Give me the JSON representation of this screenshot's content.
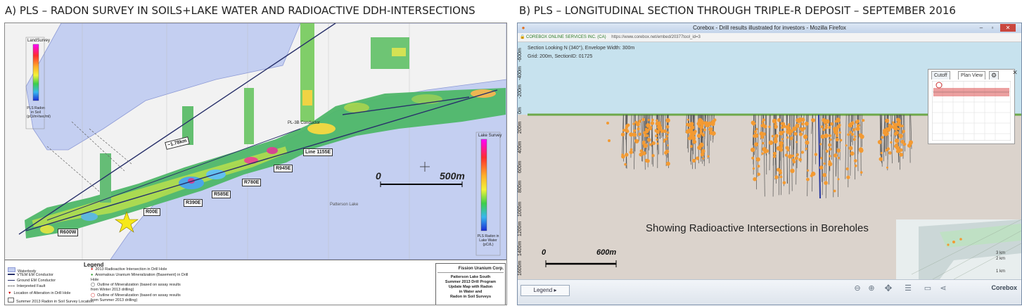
{
  "captions": {
    "left": "A) PLS – RADON SURVEY IN SOILS+LAKE WATER AND  RADIOACTIVE DDH-INTERSECTIONS",
    "right": "B) PLS – LONGITUDINAL SECTION THROUGH TRIPLE-R DEPOSIT – SEPTEMBER 2016"
  },
  "map": {
    "land_legend_title": "LandSurvey",
    "land_legend_caption": "PLS Radon in Soil (pCi/m²/sec/ml)",
    "lake_legend_title": "Lake Survey",
    "lake_legend_caption": "PLS Radon in Lake Water (pCi/L)",
    "scale_zero": "0",
    "scale_label": "500m",
    "lake_name": "Patterson Lake",
    "distance_label": "~1.78km",
    "conductor_label": "PL-3B Conductor",
    "callouts": [
      "Line 1155E",
      "R945E",
      "R780E",
      "R585E",
      "R390E",
      "R00E",
      "R600W"
    ],
    "legend": {
      "title": "Legend",
      "left_items": [
        "Waterbody",
        "VTEM EM Conductor",
        "Ground EM Conductor",
        "Interpreted Fault",
        "Location of Alteration in Drill Hole",
        "Summer 2013 Radon in Soil Survey Location"
      ],
      "right_items": [
        "2013 Radioactive Intersection in Drill Hole",
        "Anomalous Uranium Mineralization (Basement) in Drill Hole",
        "Outline of Mineralization (based on assay results from Winter 2013 drilling)",
        "Outline of Mineralization (based on assay results from Summer 2013 drilling)"
      ]
    },
    "title_block": {
      "company": "Fission Uranium Corp.",
      "lines": [
        "Patterson Lake South",
        "Summer 2013 Drill Program",
        "Update Map with Radon",
        "in Water and",
        "Radon in Soil Surveys"
      ]
    },
    "colors": {
      "lake": "#c4cff1",
      "land": "#f0f0f0",
      "conductor": "#28306a",
      "star": "#f6e81a"
    }
  },
  "browser": {
    "window_title": "Corebox - Drill results illustrated for investors - Mozilla Firefox",
    "site_name": "COREBOX ONLINE SERVICES INC. (CA)",
    "url": "https://www.corebox.net/embed/20377tool_id=3",
    "info_line1": "Section Looking N (340°), Envelope Width: 300m",
    "info_line2": "Grid: 200m, SectionID: 01725",
    "depth_labels": [
      "-600m",
      "-400m",
      "-200m",
      "0m",
      "200m",
      "400m",
      "600m",
      "800m",
      "1000m",
      "1200m",
      "1400m",
      "1600m"
    ],
    "overlay_text": "Showing Radioactive Intersections in Boreholes",
    "scale_zero": "0",
    "scale_label": "600m",
    "tabs": [
      "Cutoff",
      "Plan View"
    ],
    "legend_button": "Legend  ▸",
    "brand": "Corebox",
    "inset_labels": [
      "3 km",
      "2 km",
      "1 km"
    ],
    "colors": {
      "sky": "#c7e2ee",
      "ground": "#dbd3cc",
      "intersection": "#f39a32",
      "surface": "#6ea84a"
    }
  }
}
